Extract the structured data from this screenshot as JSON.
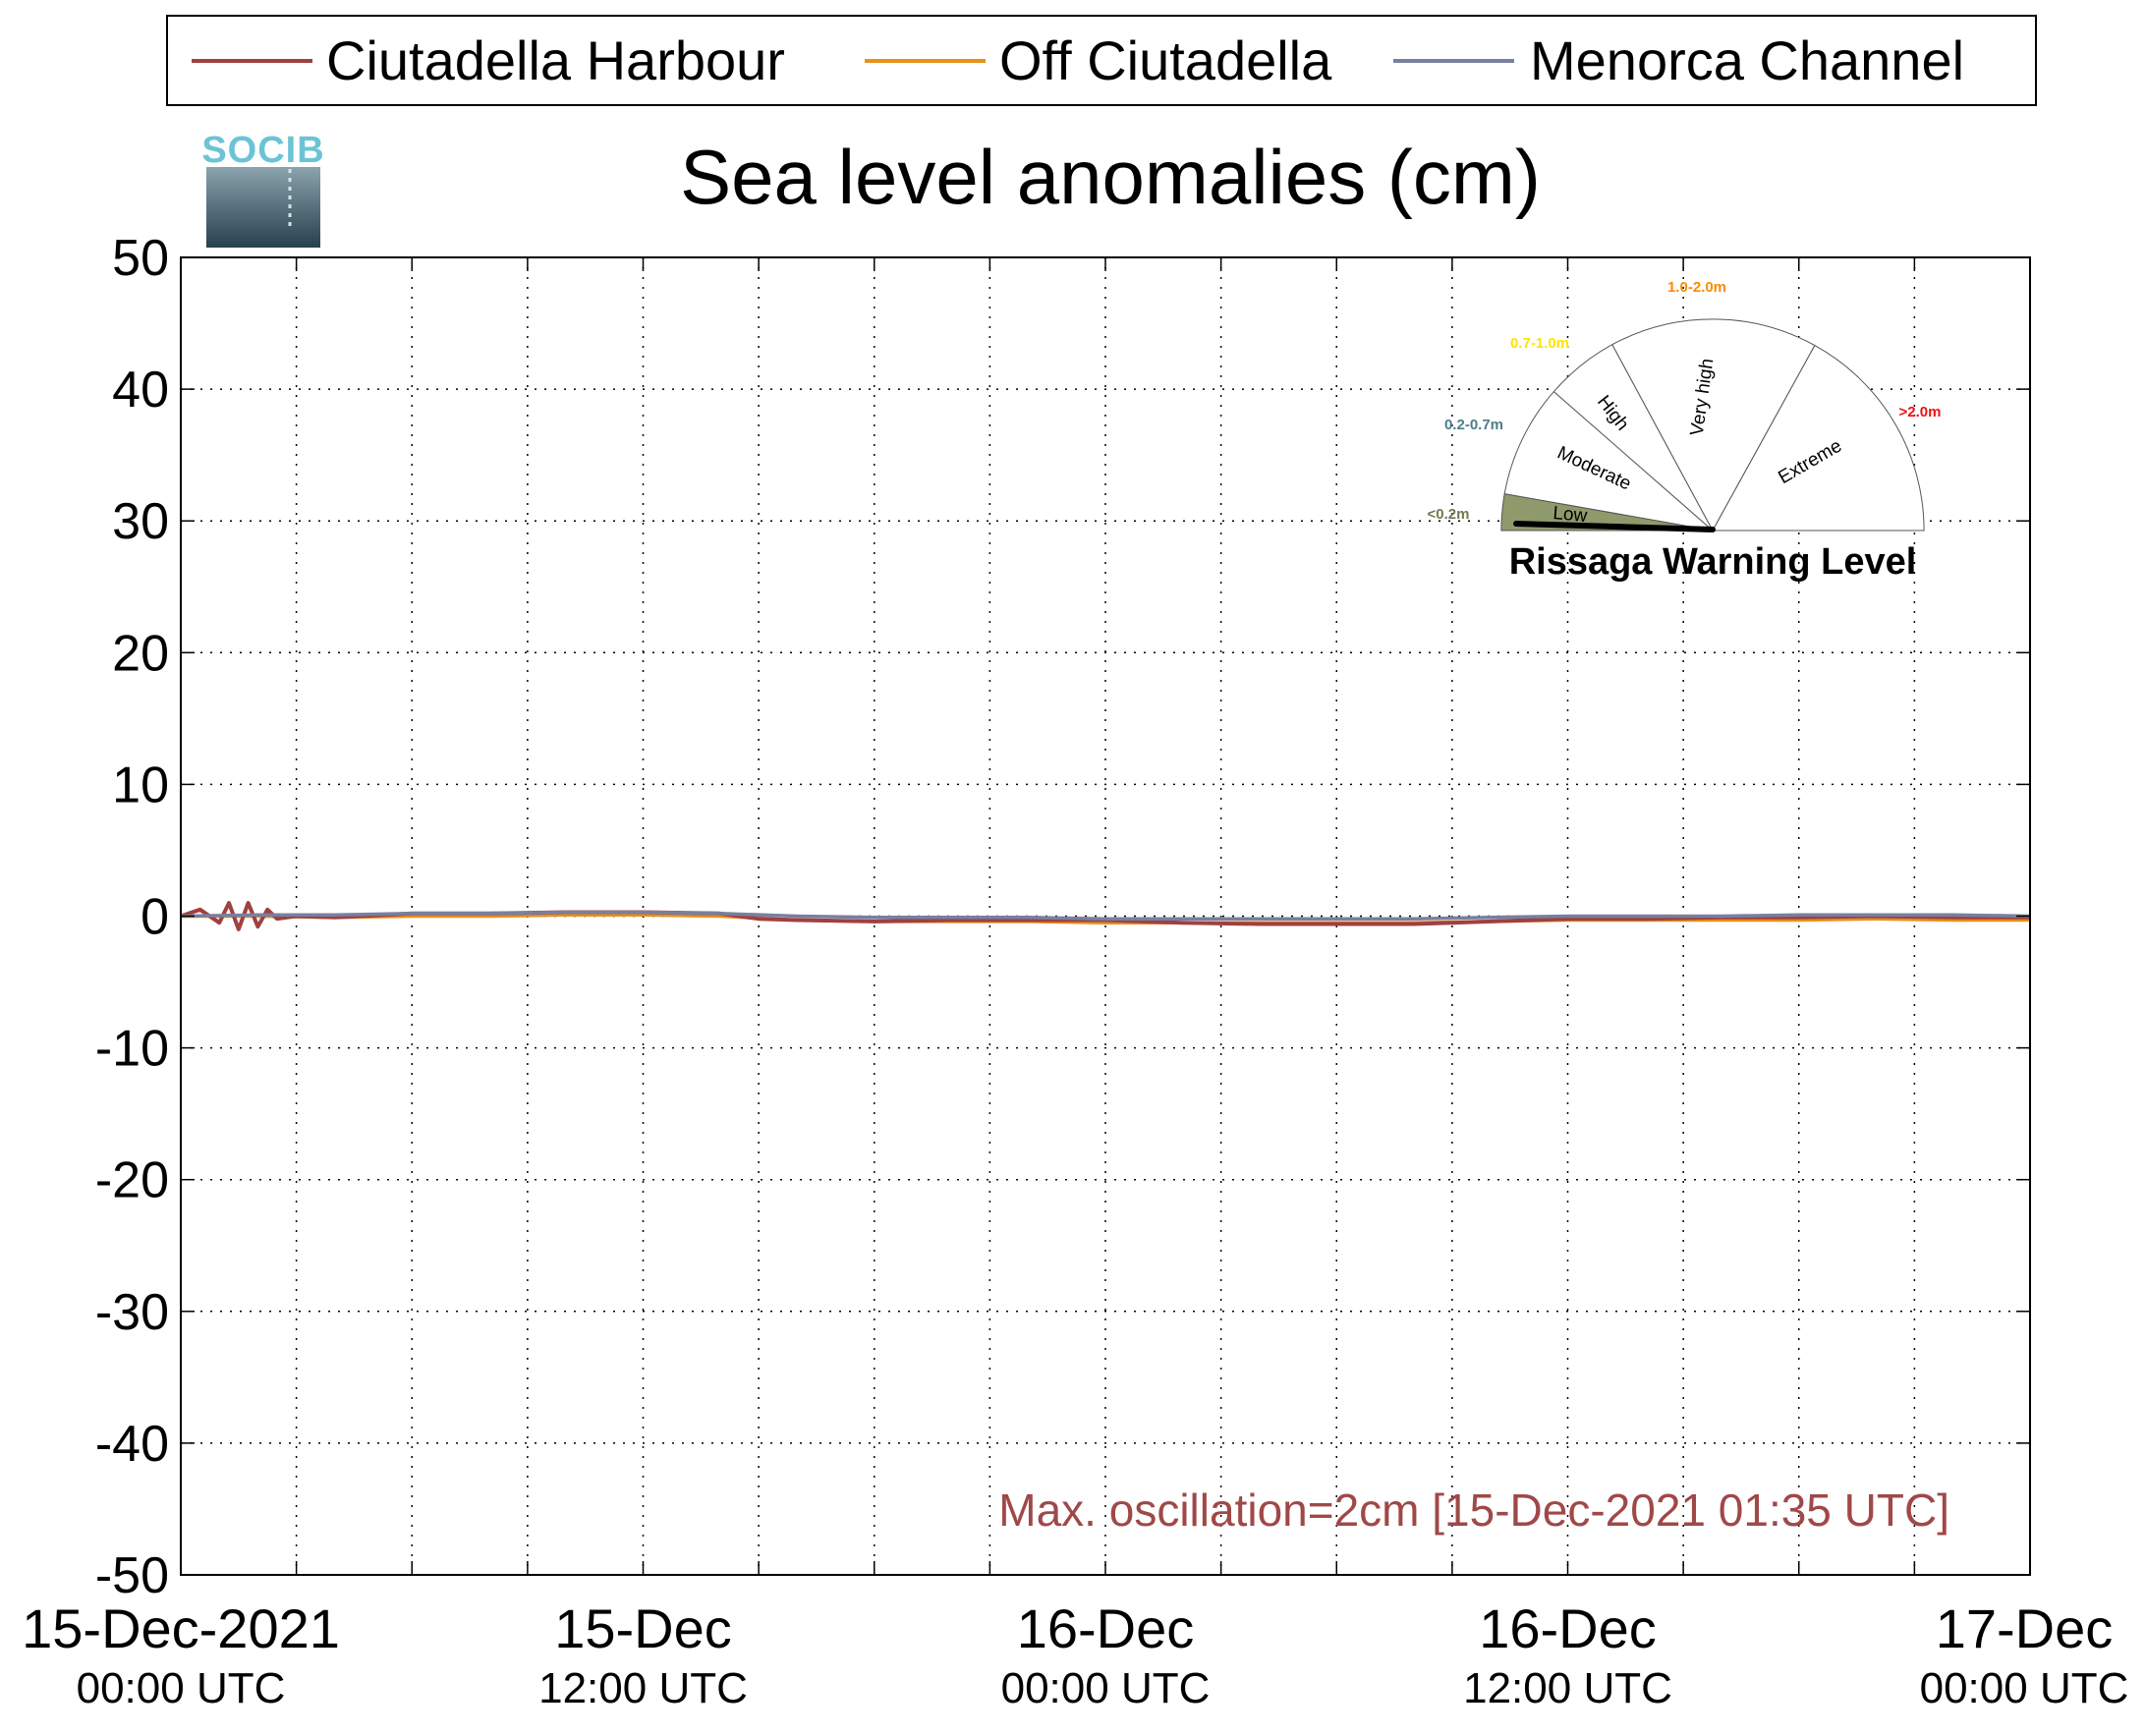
{
  "chart_data": {
    "type": "line",
    "title": "Sea level anomalies (cm)",
    "logo_text": "SOCIB",
    "xlabel": "",
    "ylabel": "",
    "ylim": [
      -50,
      50
    ],
    "yticks": [
      50,
      40,
      30,
      20,
      10,
      0,
      -10,
      -20,
      -30,
      -40,
      -50
    ],
    "xlim": [
      "15-Dec-2021 00:00 UTC",
      "17-Dec-2021 00:00 UTC"
    ],
    "xtick_hours": [
      0,
      6,
      12,
      18,
      24,
      30,
      36,
      42,
      48,
      54,
      60,
      66,
      72,
      78,
      84,
      90,
      96
    ],
    "xtick_labels": [
      {
        "hour": 0,
        "date": "15-Dec-2021",
        "time": "00:00 UTC"
      },
      {
        "hour": 24,
        "date": "15-Dec",
        "time": "12:00 UTC"
      },
      {
        "hour": 48,
        "date": "16-Dec",
        "time": "00:00 UTC"
      },
      {
        "hour": 72,
        "date": "16-Dec",
        "time": "12:00 UTC"
      },
      {
        "hour": 96,
        "date": "17-Dec",
        "time": "00:00 UTC"
      }
    ],
    "grid": true,
    "legend": "top",
    "series": [
      {
        "name": "Ciutadella Harbour",
        "color": "#a04040",
        "x": [
          0,
          1,
          2,
          2.5,
          3,
          3.5,
          4,
          4.5,
          5,
          6,
          8,
          12,
          16,
          20,
          24,
          28,
          30,
          32,
          36,
          40,
          44,
          48,
          52,
          56,
          60,
          64,
          66,
          68,
          72,
          76,
          80,
          84,
          88,
          92,
          96
        ],
        "y": [
          0.0,
          0.5,
          -0.5,
          1.0,
          -1.0,
          1.0,
          -0.8,
          0.5,
          -0.2,
          0.0,
          -0.1,
          0.2,
          0.2,
          0.3,
          0.3,
          0.2,
          -0.2,
          -0.3,
          -0.4,
          -0.3,
          -0.3,
          -0.3,
          -0.5,
          -0.6,
          -0.6,
          -0.6,
          -0.5,
          -0.4,
          -0.2,
          -0.2,
          -0.1,
          -0.1,
          0.0,
          -0.1,
          -0.1
        ]
      },
      {
        "name": "Off Ciutadella",
        "color": "#e8901a",
        "x": [
          0,
          4,
          8,
          12,
          16,
          20,
          24,
          28,
          32,
          36,
          40,
          44,
          48,
          52,
          56,
          60,
          64,
          68,
          72,
          76,
          80,
          84,
          88,
          92,
          96
        ],
        "y": [
          0.0,
          0.0,
          -0.1,
          0.0,
          0.0,
          0.1,
          0.1,
          0.0,
          -0.3,
          -0.4,
          -0.4,
          -0.4,
          -0.5,
          -0.5,
          -0.5,
          -0.5,
          -0.5,
          -0.4,
          -0.3,
          -0.3,
          -0.3,
          -0.3,
          -0.2,
          -0.3,
          -0.3
        ]
      },
      {
        "name": "Menorca Channel",
        "color": "#7880a0",
        "x": [
          0,
          4,
          8,
          12,
          16,
          20,
          24,
          28,
          32,
          36,
          40,
          44,
          48,
          52,
          56,
          60,
          64,
          68,
          72,
          76,
          80,
          84,
          88,
          92,
          96
        ],
        "y": [
          0.0,
          0.1,
          0.1,
          0.2,
          0.2,
          0.3,
          0.3,
          0.2,
          0.0,
          -0.1,
          -0.1,
          -0.1,
          -0.2,
          -0.2,
          -0.2,
          -0.2,
          -0.2,
          -0.1,
          0.0,
          0.0,
          0.0,
          0.1,
          0.1,
          0.1,
          0.0
        ]
      }
    ],
    "annotation": "Max. oscillation=2cm [15-Dec-2021 01:35 UTC]",
    "annotation_color": "#a04848",
    "gauge": {
      "title": "Rissaga Warning Level",
      "current_level": "Low",
      "levels": [
        {
          "name": "Low",
          "range": "<0.2m",
          "color": "#6f7a4f"
        },
        {
          "name": "Moderate",
          "range": "0.2-0.7m",
          "color": "#4c7f88"
        },
        {
          "name": "High",
          "range": "0.7-1.0m",
          "color": "#ffe400"
        },
        {
          "name": "Very high",
          "range": "1.0-2.0m",
          "color": "#ff8a00"
        },
        {
          "name": "Extreme",
          "range": ">2.0m",
          "color": "#ee1111"
        }
      ]
    }
  }
}
